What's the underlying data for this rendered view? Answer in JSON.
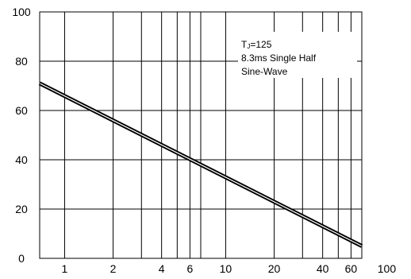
{
  "chart_data": {
    "type": "line",
    "xscale": "log",
    "xlim": [
      0.7,
      70
    ],
    "ylim": [
      0,
      100
    ],
    "grid": true,
    "x_ticks": [
      {
        "value": 1,
        "label": "1"
      },
      {
        "value": 2,
        "label": "2"
      },
      {
        "value": 4,
        "label": "4"
      },
      {
        "value": 6,
        "label": "6"
      },
      {
        "value": 10,
        "label": "10"
      },
      {
        "value": 20,
        "label": "20"
      },
      {
        "value": 40,
        "label": "40"
      },
      {
        "value": 60,
        "label": "60"
      },
      {
        "value": 100,
        "label": "100"
      }
    ],
    "x_gridlines": [
      1,
      2,
      3,
      4,
      5,
      6,
      7,
      10,
      20,
      30,
      40,
      50,
      60
    ],
    "y_ticks": [
      {
        "value": 0,
        "label": "0"
      },
      {
        "value": 20,
        "label": "20"
      },
      {
        "value": 40,
        "label": "40"
      },
      {
        "value": 60,
        "label": "60"
      },
      {
        "value": 80,
        "label": "80"
      },
      {
        "value": 100,
        "label": "100"
      }
    ],
    "series": [
      {
        "color": "#000000",
        "points": [
          {
            "x": 0.7,
            "y": 71
          },
          {
            "x": 1,
            "y": 66.5
          },
          {
            "x": 2,
            "y": 57.5
          },
          {
            "x": 4,
            "y": 48.5
          },
          {
            "x": 6,
            "y": 43
          },
          {
            "x": 10,
            "y": 36.5
          },
          {
            "x": 20,
            "y": 27
          },
          {
            "x": 40,
            "y": 18
          },
          {
            "x": 60,
            "y": 12.5
          },
          {
            "x": 70,
            "y": 5
          }
        ]
      }
    ],
    "annotation": {
      "line1_prefix": "T",
      "line1_sub": "J",
      "line1_suffix": "=125",
      "line2": "8.3ms Single Half",
      "line3": "Sine-Wave"
    }
  }
}
